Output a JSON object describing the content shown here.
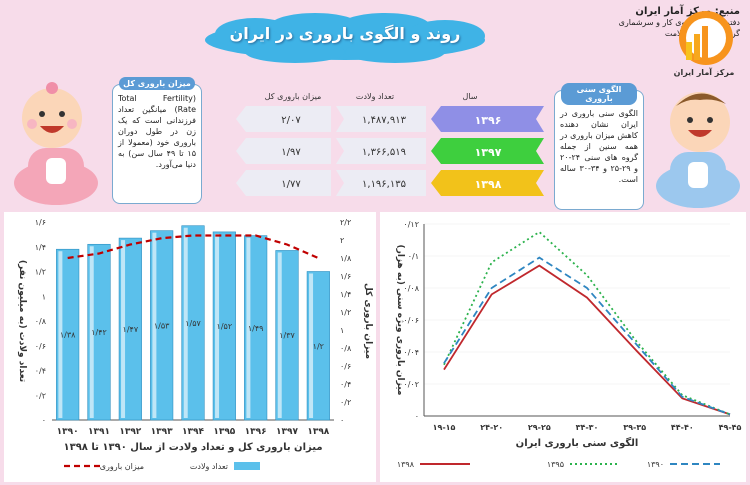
{
  "title": "روند و الگوی باروری در ایران",
  "source": {
    "line1": "منبع: مرکز آمار ایران",
    "line2": "دفتر جمعیت، نیروی کار و سرشماری",
    "line3": "گروه جمعیت و سلامت"
  },
  "logo_text": "مرکز آمار ایران",
  "left_bubble": {
    "title": "میزان باروری کل",
    "text": "(Total Fertility Rate) میانگین تعداد فرزندانی است که یک زن در طول دوران باروری خود (معمولا از ۱۵ تا ۴۹ سال سن) به دنیا می‌آورد."
  },
  "right_bubble": {
    "title": "الگوی سنی باروری",
    "text": "الگوی سنی باروری در ایران نشان دهنده کاهش میزان باروری در همه سنین از جمله گروه های سنی ۲۴-۲۰ و ۲۹-۲۵ و ۳۴-۳۰ ساله است."
  },
  "summary_table": {
    "headers": {
      "tfr": "میزان باروری کل",
      "births": "تعداد ولادت",
      "year": "سال"
    },
    "rows": [
      {
        "year": "۱۳۹۶",
        "births": "۱,۴۸۷,۹۱۳",
        "tfr": "۲/۰۷",
        "color": "#8f8fe6"
      },
      {
        "year": "۱۳۹۷",
        "births": "۱,۳۶۶,۵۱۹",
        "tfr": "۱/۹۷",
        "color": "#3ecf3e"
      },
      {
        "year": "۱۳۹۸",
        "births": "۱,۱۹۶,۱۳۵",
        "tfr": "۱/۷۷",
        "color": "#f2c21a"
      }
    ]
  },
  "chart_data": [
    {
      "type": "bar",
      "title": "میزان باروری کل و تعداد ولادت از سال ۱۳۹۰ تا ۱۳۹۸",
      "categories": [
        "۱۳۹۰",
        "۱۳۹۱",
        "۱۳۹۲",
        "۱۳۹۳",
        "۱۳۹۴",
        "۱۳۹۵",
        "۱۳۹۶",
        "۱۳۹۷",
        "۱۳۹۸"
      ],
      "series": [
        {
          "name": "تعداد ولادت",
          "type": "bar",
          "axis": "left",
          "values": [
            1.38,
            1.42,
            1.47,
            1.53,
            1.57,
            1.52,
            1.49,
            1.37,
            1.2
          ],
          "labels": [
            "۱/۳۸",
            "۱/۴۲",
            "۱/۴۷",
            "۱/۵۳",
            "۱/۵۷",
            "۱/۵۲",
            "۱/۴۹",
            "۱/۳۷",
            "۱/۲"
          ],
          "color": "#5bc0eb"
        },
        {
          "name": "میزان باروری",
          "type": "line",
          "style": "dashed",
          "axis": "right",
          "values": [
            1.8,
            1.85,
            1.95,
            2.02,
            2.05,
            2.05,
            2.05,
            1.95,
            1.8
          ],
          "color": "#c00000"
        }
      ],
      "ylabel_left": "تعداد ولادت (به میلیون نفر)",
      "ylabel_right": "میزان باروری کل",
      "ylim_left": [
        0,
        1.6
      ],
      "ylim_right": [
        0,
        2.2
      ],
      "yticks_left": [
        "۰",
        "۰/۲",
        "۰/۴",
        "۰/۶",
        "۰/۸",
        "۱",
        "۱/۲",
        "۱/۴",
        "۱/۶"
      ],
      "yticks_right": [
        "۰",
        "۰/۲",
        "۰/۴",
        "۰/۶",
        "۰/۸",
        "۱",
        "۱/۲",
        "۱/۴",
        "۱/۶",
        "۱/۸",
        "۲",
        "۲/۲"
      ]
    },
    {
      "type": "line",
      "xlabel": "الگوی سنی باروری ایران",
      "ylabel": "میزان باروری ویژه سنی (به هزار)",
      "categories": [
        "۱۹-۱۵",
        "۲۴-۲۰",
        "۲۹-۲۵",
        "۳۴-۳۰",
        "۳۹-۳۵",
        "۴۴-۴۰",
        "۴۹-۴۵"
      ],
      "ylim": [
        0,
        0.12
      ],
      "yticks": [
        "۰",
        "۰/۰۲",
        "۰/۰۴",
        "۰/۰۶",
        "۰/۰۸",
        "۰/۱",
        "۰/۱۲"
      ],
      "series": [
        {
          "name": "۱۳۹۸",
          "style": "solid",
          "color": "#c0282d",
          "values": [
            0.029,
            0.076,
            0.094,
            0.074,
            0.042,
            0.011,
            0.001
          ]
        },
        {
          "name": "۱۳۹۵",
          "style": "dotted",
          "color": "#2bb24c",
          "values": [
            0.032,
            0.096,
            0.115,
            0.088,
            0.048,
            0.013,
            0.001
          ]
        },
        {
          "name": "۱۳۹۰",
          "style": "dashed",
          "color": "#2e86c1",
          "values": [
            0.033,
            0.08,
            0.099,
            0.08,
            0.046,
            0.012,
            0.001
          ]
        }
      ]
    }
  ]
}
